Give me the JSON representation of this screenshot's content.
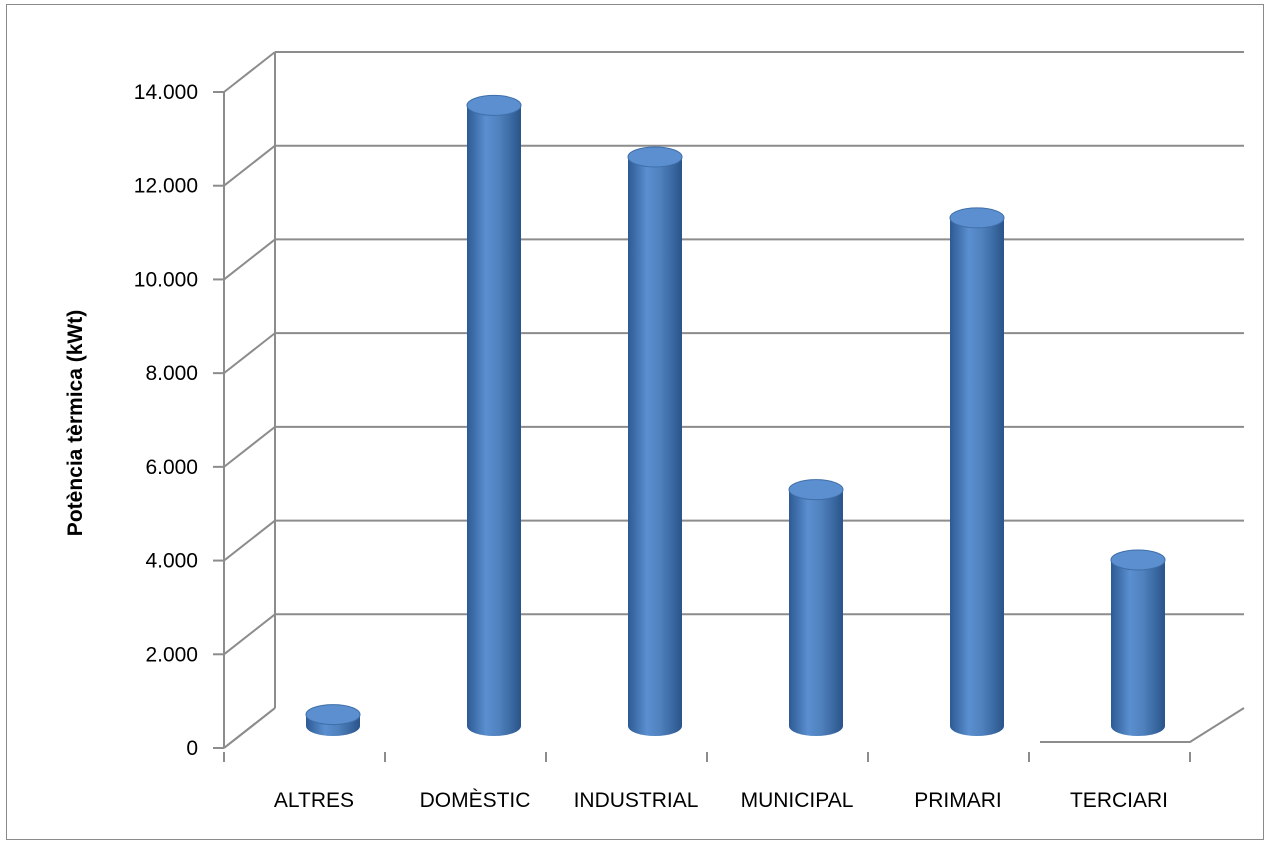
{
  "chart_data": {
    "type": "bar",
    "style": "3d-cylinder",
    "categories": [
      "ALTRES",
      "DOMÈSTIC",
      "INDUSTRIAL",
      "MUNICIPAL",
      "PRIMARI",
      "TERCIARI"
    ],
    "values": [
      500,
      13500,
      12400,
      5300,
      11100,
      3800
    ],
    "ylabel": "Potència tèrmica (kWt)",
    "xlabel": "",
    "title": "",
    "ylim": [
      0,
      14000
    ],
    "yticks": [
      0,
      2000,
      4000,
      6000,
      8000,
      10000,
      12000,
      14000
    ],
    "ytick_labels": [
      "0",
      "2.000",
      "4.000",
      "6.000",
      "8.000",
      "10.000",
      "12.000",
      "14.000"
    ],
    "grid": true,
    "legend": "none",
    "colors": {
      "bar_body": "#4f81bd",
      "bar_shade": "#2f5f98",
      "bar_top": "#5b8fd0",
      "gridline": "#8c8c8c"
    }
  }
}
